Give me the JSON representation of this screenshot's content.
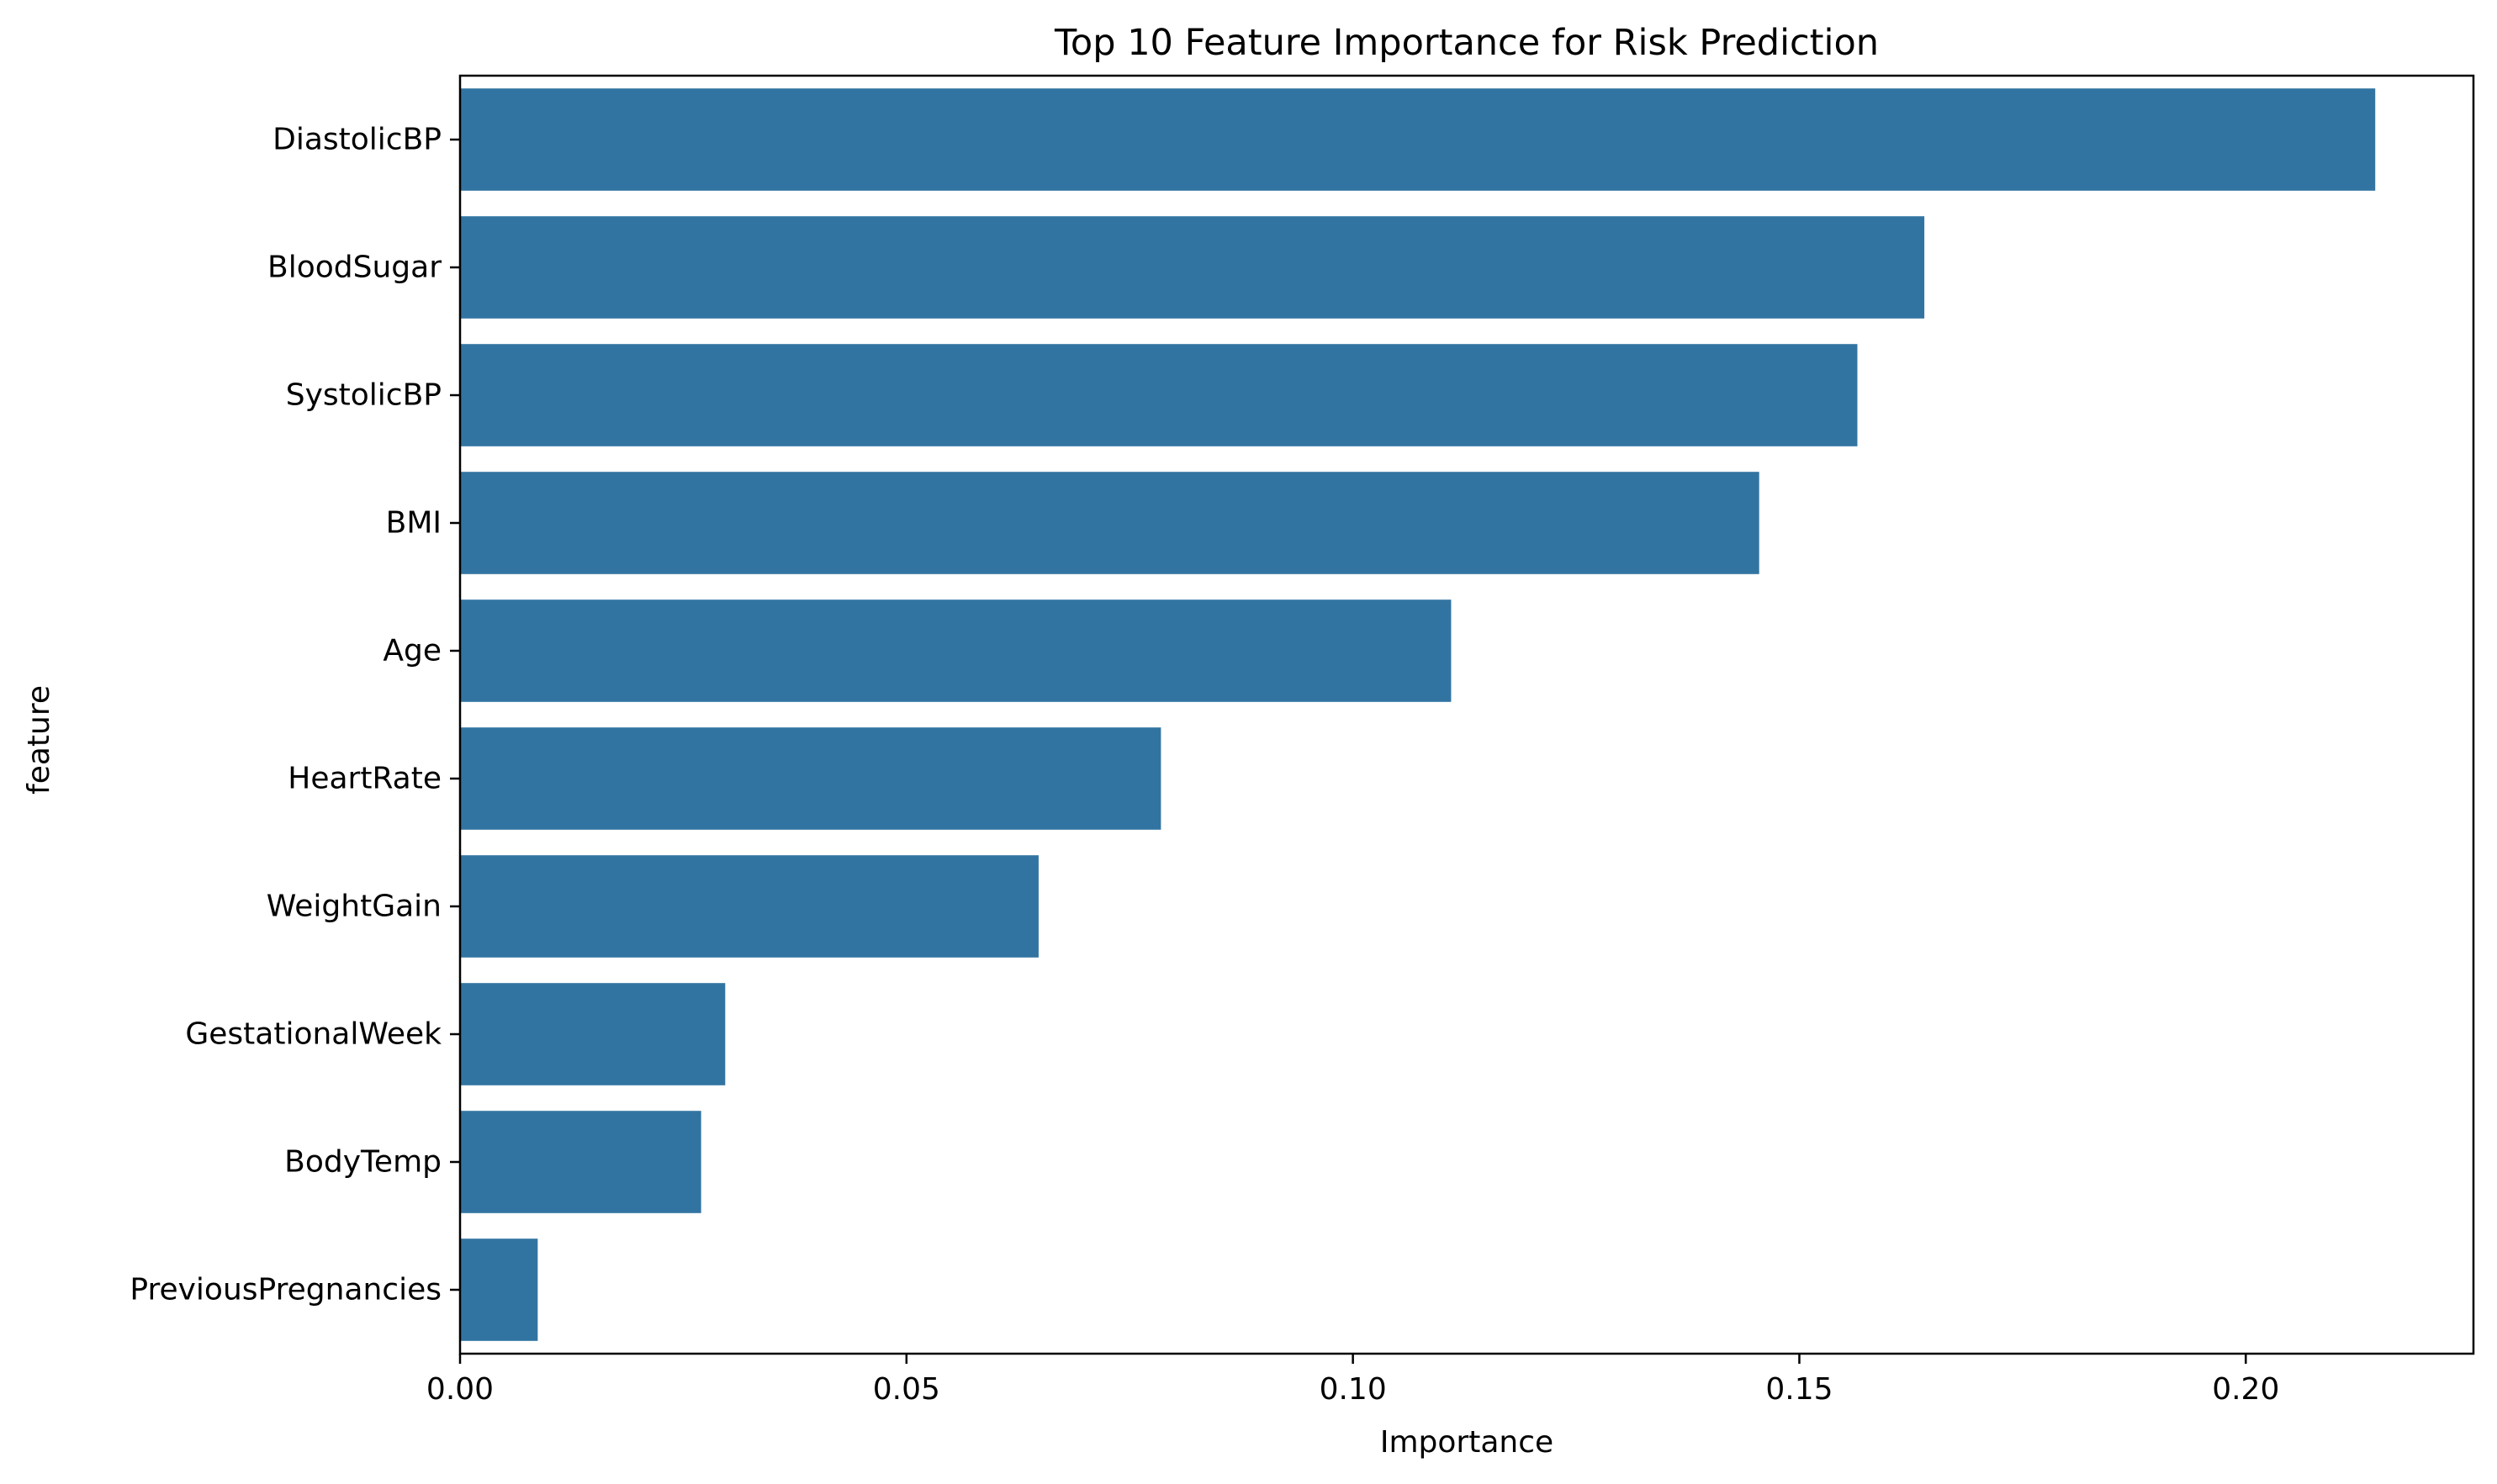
{
  "chart_data": {
    "type": "bar",
    "orientation": "horizontal",
    "title": "Top 10 Feature Importance for Risk Prediction",
    "xlabel": "Importance",
    "ylabel": "feature",
    "categories": [
      "DiastolicBP",
      "BloodSugar",
      "SystolicBP",
      "BMI",
      "Age",
      "HeartRate",
      "WeightGain",
      "GestationalWeek",
      "BodyTemp",
      "PreviousPregnancies"
    ],
    "values": [
      0.2145,
      0.164,
      0.1565,
      0.1455,
      0.111,
      0.0785,
      0.0648,
      0.0297,
      0.027,
      0.0087
    ],
    "xlim": [
      0,
      0.2255
    ],
    "xticks": [
      0.0,
      0.05,
      0.1,
      0.15,
      0.2
    ],
    "xtick_labels": [
      "0.00",
      "0.05",
      "0.10",
      "0.15",
      "0.20"
    ],
    "bar_color": "#3274a1",
    "grid": false,
    "legend": "none"
  }
}
